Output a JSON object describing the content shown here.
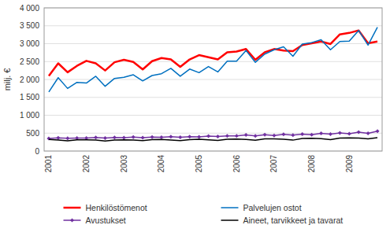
{
  "chart_data": {
    "type": "line",
    "y_label": "milj. €",
    "ylim": [
      0,
      4000
    ],
    "yticks": [
      0,
      500,
      {
        "value": 1000,
        "label": "1 000"
      },
      {
        "value": 1500,
        "label": "1 500"
      },
      {
        "value": 2000,
        "label": "2 000"
      },
      {
        "value": 2500,
        "label": "2 500"
      },
      {
        "value": 3000,
        "label": "3 000"
      },
      {
        "value": 3500,
        "label": "3 500"
      },
      {
        "value": 4000,
        "label": "4 000"
      }
    ],
    "categories": [
      "2001",
      null,
      null,
      null,
      "2002",
      null,
      null,
      null,
      "2003",
      null,
      null,
      null,
      "2004",
      null,
      null,
      null,
      "2005",
      null,
      null,
      null,
      "2006",
      null,
      null,
      null,
      "2007",
      null,
      null,
      null,
      "2008",
      null,
      null,
      null,
      "2009",
      null,
      null,
      null
    ],
    "grid": true,
    "legend": "bottom",
    "series": [
      {
        "name": "Henkilöstömenot",
        "color": "#ff0000",
        "values": [
          2100,
          2450,
          2200,
          2380,
          2520,
          2450,
          2250,
          2480,
          2550,
          2490,
          2280,
          2510,
          2600,
          2560,
          2350,
          2560,
          2680,
          2620,
          2560,
          2760,
          2780,
          2850,
          2550,
          2760,
          2850,
          2810,
          2790,
          2960,
          3010,
          3060,
          2990,
          3260,
          3300,
          3370,
          3010,
          3060
        ]
      },
      {
        "name": "Palvelujen ostot",
        "color": "#0070c0",
        "values": [
          1650,
          2050,
          1750,
          1920,
          1900,
          2090,
          1810,
          2030,
          2060,
          2130,
          1960,
          2110,
          2160,
          2310,
          2090,
          2290,
          2190,
          2360,
          2210,
          2510,
          2510,
          2810,
          2480,
          2710,
          2830,
          2910,
          2650,
          2990,
          3030,
          3110,
          2830,
          3060,
          3070,
          3370,
          2960,
          3460
        ]
      },
      {
        "name": "Avustukset",
        "color": "#7030a0",
        "marker": "diamond",
        "values": [
          350,
          370,
          355,
          365,
          365,
          380,
          365,
          380,
          375,
          390,
          375,
          390,
          385,
          400,
          385,
          400,
          395,
          420,
          405,
          425,
          425,
          450,
          425,
          455,
          435,
          465,
          445,
          475,
          455,
          495,
          475,
          505,
          485,
          525,
          495,
          555
        ]
      },
      {
        "name": "Aineet, tarvikkeet ja tavarat",
        "color": "#000000",
        "values": [
          325,
          305,
          285,
          315,
          315,
          305,
          280,
          310,
          315,
          305,
          290,
          320,
          325,
          310,
          290,
          320,
          330,
          315,
          295,
          330,
          335,
          325,
          300,
          340,
          340,
          330,
          305,
          350,
          355,
          345,
          320,
          365,
          370,
          365,
          340,
          375
        ]
      }
    ]
  }
}
